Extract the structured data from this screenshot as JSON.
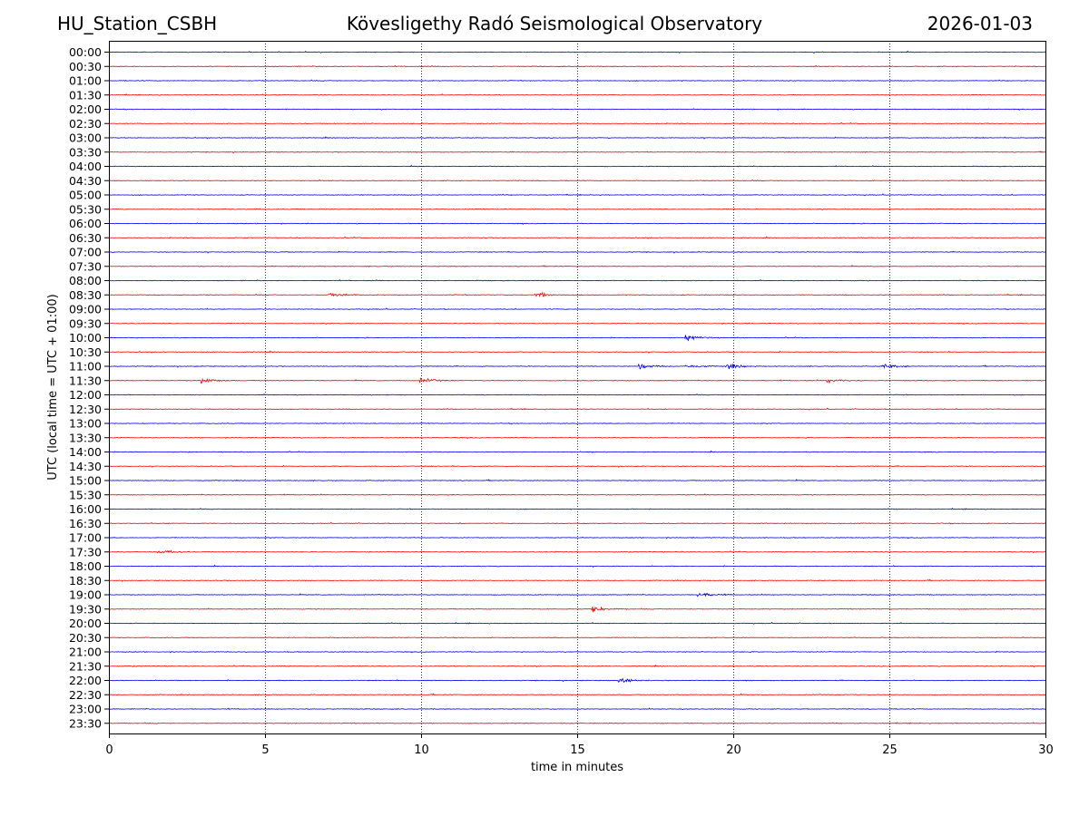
{
  "header": {
    "station": "HU_Station_CSBH",
    "observatory": "Kövesligethy Radó Seismological Observatory",
    "date": "2026-01-03"
  },
  "colors": {
    "even_row": "#0000ff",
    "odd_row": "#ff0000",
    "grid": "#000000"
  },
  "chart_data": {
    "type": "line",
    "title": "",
    "xlabel": "time in minutes",
    "ylabel": "UTC (local time = UTC + 01:00)",
    "xlim": [
      0,
      30
    ],
    "x_ticks": [
      0,
      5,
      10,
      15,
      20,
      25,
      30
    ],
    "grid": "vertical dotted lines at each 5 minutes",
    "row_labels": [
      "00:00",
      "00:30",
      "01:00",
      "01:30",
      "02:00",
      "02:30",
      "03:00",
      "03:30",
      "04:00",
      "04:30",
      "05:00",
      "05:30",
      "06:00",
      "06:30",
      "07:00",
      "07:30",
      "08:00",
      "08:30",
      "09:00",
      "09:30",
      "10:00",
      "10:30",
      "11:00",
      "11:30",
      "12:00",
      "12:30",
      "13:00",
      "13:30",
      "14:00",
      "14:30",
      "15:00",
      "15:30",
      "16:00",
      "16:30",
      "17:00",
      "17:30",
      "18:00",
      "18:30",
      "19:00",
      "19:30",
      "20:00",
      "20:30",
      "21:00",
      "21:30",
      "22:00",
      "22:30",
      "23:00",
      "23:30"
    ],
    "series_colors": "alternating blue (on the hour) and red (on the half hour)",
    "events": [
      {
        "row": "17:30",
        "minute": 1.6
      },
      {
        "row": "19:30",
        "minute": 15.5
      },
      {
        "row": "22:00",
        "minute": 16.3
      },
      {
        "row": "11:00",
        "minute": 17.0
      },
      {
        "row": "11:00",
        "minute": 18.5
      },
      {
        "row": "11:00",
        "minute": 19.8
      },
      {
        "row": "11:00",
        "minute": 24.8
      },
      {
        "row": "10:00",
        "minute": 18.5
      },
      {
        "row": "08:30",
        "minute": 7.1
      },
      {
        "row": "08:30",
        "minute": 13.7
      },
      {
        "row": "11:30",
        "minute": 3.0
      },
      {
        "row": "11:30",
        "minute": 10.0
      },
      {
        "row": "11:30",
        "minute": 23.0
      },
      {
        "row": "19:00",
        "minute": 18.9
      }
    ]
  }
}
